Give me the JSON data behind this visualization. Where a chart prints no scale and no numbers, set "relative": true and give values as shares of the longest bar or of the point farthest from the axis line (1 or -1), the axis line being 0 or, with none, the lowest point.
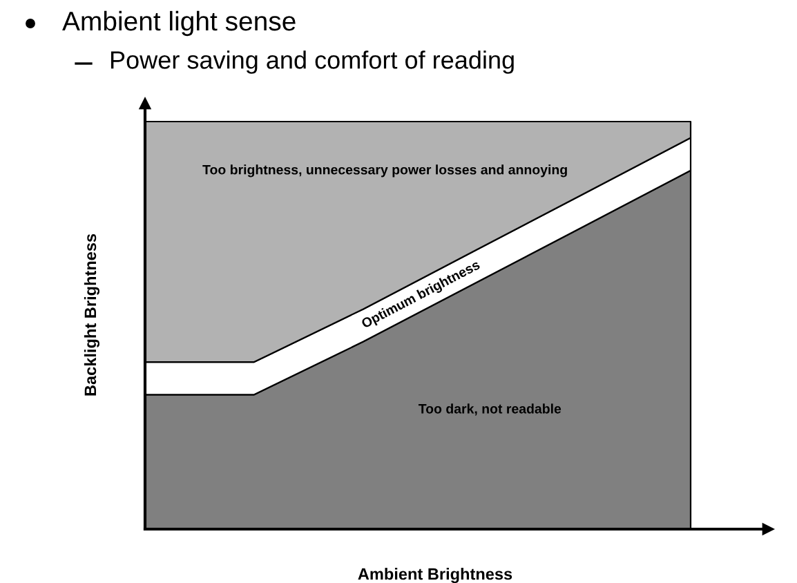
{
  "chart_data": {
    "type": "area",
    "title": "Ambient light sense",
    "subtitle": "Power saving and comfort of reading",
    "xlabel": "Ambient Brightness",
    "ylabel": "Backlight Brightness",
    "categories": [
      null,
      null,
      null,
      null,
      null,
      null
    ],
    "relative": true,
    "stacked": true,
    "grid": false,
    "legend": false,
    "series": [
      {
        "name": "Too dark, not readable",
        "color": "#808080",
        "values": [
          0.33,
          0.33,
          0.46,
          0.6,
          0.74,
          0.88
        ]
      },
      {
        "name": "Optimum brightness",
        "color": "#ffffff",
        "values": [
          0.08,
          0.08,
          0.08,
          0.08,
          0.08,
          0.08
        ]
      },
      {
        "name": "Too brightness, unnecessary power losses and annoying",
        "color": "#b2b2b2",
        "values": [
          0.59,
          0.59,
          0.46,
          0.32,
          0.18,
          0.04
        ]
      }
    ]
  }
}
